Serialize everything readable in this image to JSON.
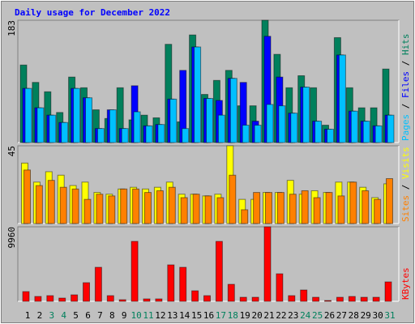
{
  "page_title": "Daily usage for December 2022",
  "legend_separator": " / ",
  "chart_data": [
    {
      "type": "bar",
      "ylim": [
        0,
        183
      ],
      "yticks": [
        183
      ],
      "series": [
        {
          "name": "Hits",
          "color": "#00805c",
          "values": [
            116,
            90,
            76,
            45,
            98,
            82,
            49,
            36,
            82,
            34,
            41,
            37,
            147,
            31,
            161,
            72,
            93,
            108,
            55,
            55,
            183,
            132,
            82,
            100,
            82,
            26,
            157,
            82,
            52,
            52,
            110
          ]
        },
        {
          "name": "Files",
          "color": "#0000ff",
          "values": [
            81,
            52,
            41,
            30,
            81,
            67,
            21,
            49,
            21,
            85,
            25,
            27,
            65,
            108,
            143,
            66,
            63,
            96,
            90,
            32,
            159,
            98,
            44,
            83,
            32,
            20,
            131,
            47,
            32,
            25,
            41
          ]
        },
        {
          "name": "Pages",
          "color": "#00c0ff",
          "values": [
            81,
            52,
            41,
            30,
            81,
            67,
            21,
            49,
            21,
            46,
            25,
            27,
            65,
            21,
            143,
            66,
            41,
            96,
            26,
            26,
            57,
            55,
            44,
            83,
            32,
            20,
            131,
            47,
            32,
            25,
            41
          ]
        }
      ]
    },
    {
      "type": "bar",
      "ylim": [
        0,
        45
      ],
      "yticks": [
        45
      ],
      "series": [
        {
          "name": "Visits",
          "color": "#ffff00",
          "values": [
            35,
            24,
            30,
            28,
            22,
            24,
            18,
            17,
            20,
            21,
            20,
            21,
            24,
            17,
            17,
            16,
            17,
            45,
            14,
            14,
            18,
            18,
            25,
            17,
            19,
            18,
            24,
            24,
            21,
            15,
            23
          ]
        },
        {
          "name": "Sites",
          "color": "#ff8000",
          "values": [
            31,
            22,
            25,
            21,
            20,
            14,
            17,
            16,
            20,
            20,
            18,
            19,
            21,
            15,
            17,
            16,
            15,
            28,
            8,
            18,
            18,
            18,
            17,
            19,
            15,
            18,
            16,
            24,
            19,
            14,
            26
          ]
        }
      ]
    },
    {
      "type": "bar",
      "ylim": [
        0,
        9960
      ],
      "yticks": [
        9960
      ],
      "categories": [
        "1",
        "2",
        "3",
        "4",
        "5",
        "6",
        "7",
        "8",
        "9",
        "10",
        "11",
        "12",
        "13",
        "14",
        "15",
        "16",
        "17",
        "18",
        "19",
        "20",
        "21",
        "22",
        "23",
        "24",
        "25",
        "26",
        "27",
        "28",
        "29",
        "30",
        "31"
      ],
      "category_colors": [
        "#000000",
        "#000000",
        "#00805c",
        "#00805c",
        "#000000",
        "#000000",
        "#000000",
        "#000000",
        "#000000",
        "#00805c",
        "#00805c",
        "#000000",
        "#000000",
        "#000000",
        "#000000",
        "#000000",
        "#00805c",
        "#00805c",
        "#000000",
        "#000000",
        "#000000",
        "#000000",
        "#000000",
        "#00805c",
        "#00805c",
        "#000000",
        "#000000",
        "#000000",
        "#000000",
        "#000000",
        "#00805c"
      ],
      "series": [
        {
          "name": "KBytes",
          "color": "#ff0000",
          "values": [
            1299,
            650,
            758,
            433,
            866,
            2490,
            4547,
            758,
            217,
            8011,
            325,
            325,
            4872,
            4547,
            1407,
            758,
            8011,
            2273,
            541,
            541,
            9960,
            3681,
            758,
            1516,
            541,
            108,
            541,
            650,
            541,
            541,
            2598
          ]
        }
      ]
    }
  ]
}
